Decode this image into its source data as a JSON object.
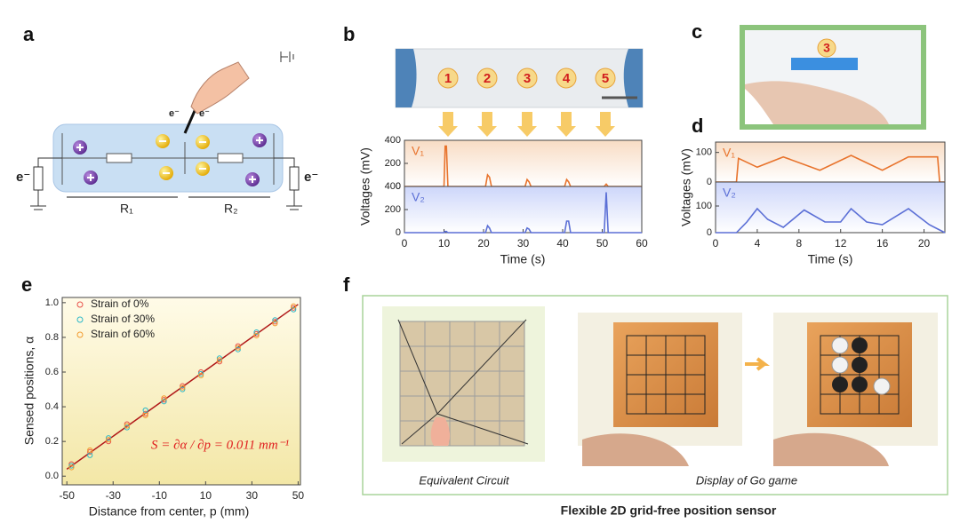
{
  "panels": {
    "a": {
      "label": "a",
      "electron_labels": [
        "e⁻",
        "e⁻",
        "e⁻",
        "e⁻"
      ],
      "resistors": [
        "R₁",
        "R₂"
      ]
    },
    "b": {
      "label": "b",
      "points": [
        "1",
        "2",
        "3",
        "4",
        "5"
      ]
    },
    "c": {
      "label": "c",
      "number": "3"
    },
    "d": {
      "label": "d"
    },
    "e": {
      "label": "e"
    },
    "f": {
      "label": "f",
      "captions": [
        "Equivalent Circuit",
        "Display of Go game"
      ],
      "title": "Flexible 2D grid-free position sensor"
    }
  },
  "chart_data": [
    {
      "type": "line",
      "ylabel": "Voltages (mV)",
      "x": [
        0,
        10,
        10.3,
        10.6,
        11,
        11.3,
        20.5,
        21,
        21.5,
        22,
        30.5,
        31,
        31.5,
        32,
        40.5,
        41,
        41.5,
        42,
        50.5,
        51,
        51.5,
        60
      ],
      "xlim": [
        0,
        60
      ],
      "ylim": [
        0,
        400
      ],
      "yticks": [
        0,
        200,
        400
      ],
      "series": [
        {
          "name": "V₁",
          "color": "#e8732c",
          "values": [
            0,
            0,
            350,
            350,
            0,
            0,
            0,
            100,
            80,
            0,
            0,
            60,
            40,
            0,
            0,
            60,
            40,
            0,
            0,
            20,
            0,
            0
          ]
        }
      ]
    },
    {
      "type": "line",
      "xlabel": "Time (s)",
      "x": [
        0,
        10,
        10.3,
        10.6,
        11,
        11.3,
        20.5,
        21,
        21.5,
        22,
        30.5,
        31,
        31.5,
        32,
        40.5,
        41,
        41.5,
        42,
        50.5,
        51,
        51.5,
        60
      ],
      "xlim": [
        0,
        60
      ],
      "xticks": [
        0,
        10,
        20,
        30,
        40,
        50,
        60
      ],
      "ylim": [
        0,
        400
      ],
      "yticks": [
        0,
        200,
        400
      ],
      "series": [
        {
          "name": "V₂",
          "color": "#5b6fd6",
          "values": [
            0,
            0,
            10,
            10,
            0,
            0,
            0,
            60,
            40,
            0,
            0,
            40,
            30,
            0,
            0,
            100,
            100,
            0,
            0,
            350,
            0,
            0
          ]
        }
      ]
    },
    {
      "type": "line",
      "ylabel": "Voltages (mV)",
      "x": [
        0,
        2,
        2.2,
        4,
        6.5,
        10,
        13,
        16,
        18.5,
        21.3,
        21.5,
        22
      ],
      "xlim": [
        0,
        22
      ],
      "ylim": [
        0,
        135
      ],
      "yticks": [
        0,
        100
      ],
      "series": [
        {
          "name": "V₁",
          "color": "#e8732c",
          "values": [
            0,
            0,
            80,
            50,
            85,
            40,
            90,
            40,
            85,
            85,
            0,
            0
          ]
        }
      ]
    },
    {
      "type": "line",
      "xlabel": "Time (s)",
      "x": [
        0,
        2,
        3,
        4,
        5,
        6.5,
        8.5,
        10.5,
        12,
        13,
        14.5,
        16,
        18.5,
        20.5,
        21.5,
        22
      ],
      "xlim": [
        0,
        22
      ],
      "xticks": [
        0,
        4,
        8,
        12,
        16,
        20
      ],
      "ylim": [
        0,
        190
      ],
      "yticks": [
        0,
        100
      ],
      "series": [
        {
          "name": "V₂",
          "color": "#5b6fd6",
          "values": [
            0,
            0,
            40,
            90,
            50,
            20,
            85,
            40,
            40,
            90,
            40,
            30,
            90,
            30,
            10,
            0
          ]
        }
      ]
    },
    {
      "type": "scatter",
      "xlabel": "Distance from center, p (mm)",
      "ylabel": "Sensed positions, α",
      "annotation": "S = ∂α / ∂p = 0.011 mm⁻¹",
      "x": [
        -48,
        -40,
        -32,
        -24,
        -16,
        -8,
        0,
        8,
        16,
        24,
        32,
        40,
        48
      ],
      "xlim": [
        -52,
        51
      ],
      "xticks": [
        -50,
        -30,
        -10,
        10,
        30,
        50
      ],
      "ylim": [
        -0.05,
        1.03
      ],
      "yticks": [
        {
          "value": 0,
          "label": "0.0"
        },
        0.2,
        0.4,
        0.6,
        0.8,
        {
          "value": 1,
          "label": "1.0"
        }
      ],
      "series": [
        {
          "name": "Strain of 0%",
          "color": "#e8504a",
          "values": [
            0.07,
            0.14,
            0.2,
            0.3,
            0.36,
            0.44,
            0.52,
            0.6,
            0.66,
            0.75,
            0.82,
            0.89,
            0.97
          ]
        },
        {
          "name": "Strain of 30%",
          "color": "#2cb8c8",
          "values": [
            0.06,
            0.12,
            0.22,
            0.28,
            0.38,
            0.43,
            0.5,
            0.59,
            0.68,
            0.73,
            0.83,
            0.9,
            0.96
          ]
        },
        {
          "name": "Strain of 60%",
          "color": "#f29a2e",
          "values": [
            0.05,
            0.15,
            0.21,
            0.29,
            0.35,
            0.45,
            0.51,
            0.58,
            0.67,
            0.74,
            0.81,
            0.88,
            0.98
          ]
        }
      ],
      "fit": {
        "x": [
          -50,
          50
        ],
        "values": [
          0.04,
          0.99
        ],
        "color": "#b01818"
      }
    }
  ]
}
